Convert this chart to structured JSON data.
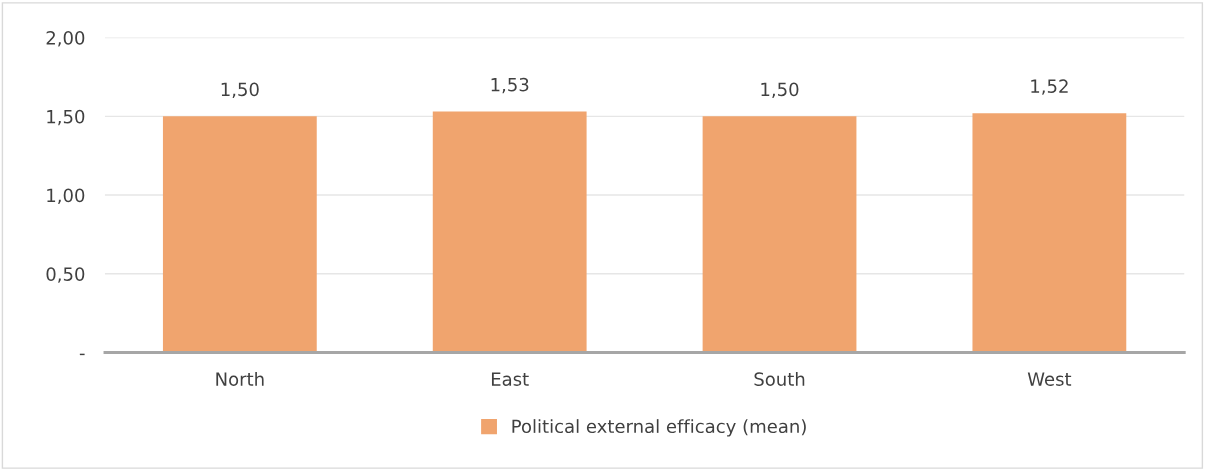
{
  "chart_data": {
    "type": "bar",
    "categories": [
      "North",
      "East",
      "South",
      "West"
    ],
    "series": [
      {
        "name": "Political external efficacy (mean)",
        "color": "#f0a46e",
        "values": [
          1.5,
          1.53,
          1.5,
          1.52
        ],
        "value_labels": [
          "1,50",
          "1,53",
          "1,50",
          "1,52"
        ]
      }
    ],
    "ylim": [
      0,
      2
    ],
    "yticks": [
      {
        "value": 0,
        "label": "-"
      },
      {
        "value": 0.5,
        "label": "0,50"
      },
      {
        "value": 1,
        "label": "1,00"
      },
      {
        "value": 1.5,
        "label": "1,50"
      },
      {
        "value": 2,
        "label": "2,00"
      }
    ],
    "grid": "y",
    "legend": "bottom"
  }
}
